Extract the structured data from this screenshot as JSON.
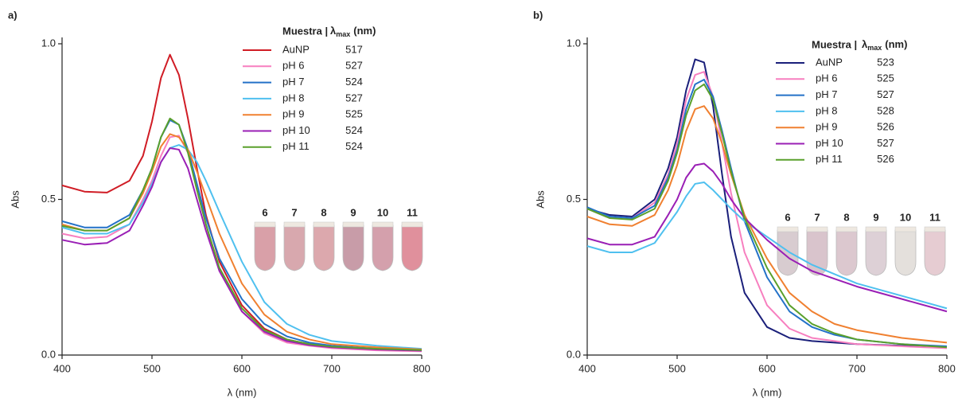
{
  "chart_data": [
    {
      "type": "line",
      "panel_label": "a)",
      "x_label": "λ (nm)",
      "y_label": "Abs",
      "xlim": [
        400,
        800
      ],
      "xticks": [
        400,
        500,
        600,
        700,
        800
      ],
      "ylim": [
        0,
        1.0
      ],
      "yticks": [
        {
          "value": 0,
          "label": "0.0"
        },
        {
          "value": 0.5,
          "label": "0.5"
        },
        {
          "value": 1.0,
          "label": "1.0"
        }
      ],
      "legend_title": "Muestra |",
      "lambda_symbol": "λ",
      "lambda_sub": "max",
      "lambda_unit": "(nm)",
      "x": [
        400,
        425,
        450,
        475,
        490,
        500,
        510,
        520,
        530,
        540,
        550,
        560,
        575,
        600,
        625,
        650,
        675,
        700,
        750,
        800
      ],
      "series": [
        {
          "name": "AuNP",
          "lambda_max": 517,
          "color": "#d01c25",
          "values": [
            0.545,
            0.525,
            0.522,
            0.56,
            0.64,
            0.75,
            0.89,
            0.965,
            0.9,
            0.76,
            0.6,
            0.45,
            0.3,
            0.16,
            0.085,
            0.05,
            0.035,
            0.028,
            0.02,
            0.015
          ]
        },
        {
          "name": "pH 6",
          "lambda_max": 527,
          "color": "#f77fbf",
          "values": [
            0.39,
            0.375,
            0.38,
            0.42,
            0.5,
            0.56,
            0.64,
            0.7,
            0.705,
            0.65,
            0.54,
            0.42,
            0.27,
            0.14,
            0.07,
            0.04,
            0.03,
            0.022,
            0.015,
            0.012
          ]
        },
        {
          "name": "pH 7",
          "lambda_max": 524,
          "color": "#2472c8",
          "values": [
            0.43,
            0.41,
            0.41,
            0.45,
            0.53,
            0.6,
            0.7,
            0.755,
            0.74,
            0.66,
            0.55,
            0.44,
            0.31,
            0.18,
            0.1,
            0.06,
            0.04,
            0.03,
            0.02,
            0.015
          ]
        },
        {
          "name": "pH 8",
          "lambda_max": 527,
          "color": "#4fc0ef",
          "values": [
            0.41,
            0.39,
            0.39,
            0.42,
            0.49,
            0.55,
            0.62,
            0.665,
            0.675,
            0.66,
            0.62,
            0.56,
            0.46,
            0.3,
            0.17,
            0.1,
            0.065,
            0.045,
            0.03,
            0.02
          ]
        },
        {
          "name": "pH 9",
          "lambda_max": 525,
          "color": "#f08030",
          "values": [
            0.42,
            0.4,
            0.4,
            0.44,
            0.52,
            0.59,
            0.67,
            0.71,
            0.7,
            0.66,
            0.59,
            0.51,
            0.39,
            0.23,
            0.13,
            0.075,
            0.05,
            0.035,
            0.025,
            0.018
          ]
        },
        {
          "name": "pH 10",
          "lambda_max": 524,
          "color": "#9a1fb5",
          "values": [
            0.37,
            0.355,
            0.36,
            0.4,
            0.48,
            0.54,
            0.62,
            0.665,
            0.66,
            0.6,
            0.5,
            0.4,
            0.27,
            0.14,
            0.075,
            0.045,
            0.032,
            0.025,
            0.018,
            0.014
          ]
        },
        {
          "name": "pH 11",
          "lambda_max": 524,
          "color": "#5aa02c",
          "values": [
            0.415,
            0.4,
            0.4,
            0.44,
            0.53,
            0.6,
            0.7,
            0.76,
            0.74,
            0.65,
            0.53,
            0.42,
            0.28,
            0.15,
            0.08,
            0.05,
            0.035,
            0.027,
            0.02,
            0.016
          ]
        }
      ],
      "vial_labels": [
        "6",
        "7",
        "8",
        "9",
        "10",
        "11"
      ],
      "vial_colors": [
        "#d9a0a8",
        "#d8a8ae",
        "#dca8ad",
        "#c89ca8",
        "#d4a0ac",
        "#e0909c"
      ]
    },
    {
      "type": "line",
      "panel_label": "b)",
      "x_label": "λ (nm)",
      "y_label": "Abs",
      "xlim": [
        400,
        800
      ],
      "xticks": [
        400,
        500,
        600,
        700,
        800
      ],
      "ylim": [
        0,
        1.0
      ],
      "yticks": [
        {
          "value": 0,
          "label": "0.0"
        },
        {
          "value": 0.5,
          "label": "0.5"
        },
        {
          "value": 1.0,
          "label": "1.0"
        }
      ],
      "legend_title": "Muestra |",
      "lambda_symbol": "λ",
      "lambda_sub": "max",
      "lambda_unit": "(nm)",
      "x": [
        400,
        425,
        450,
        475,
        490,
        500,
        510,
        520,
        530,
        540,
        550,
        560,
        575,
        600,
        625,
        650,
        675,
        700,
        750,
        800
      ],
      "series": [
        {
          "name": "AuNP",
          "lambda_max": 523,
          "color": "#1a1f7a",
          "values": [
            0.47,
            0.45,
            0.445,
            0.5,
            0.6,
            0.7,
            0.85,
            0.95,
            0.94,
            0.8,
            0.58,
            0.38,
            0.2,
            0.09,
            0.055,
            0.045,
            0.04,
            0.035,
            0.03,
            0.025
          ]
        },
        {
          "name": "pH 6",
          "lambda_max": 525,
          "color": "#f77fbf",
          "values": [
            0.47,
            0.44,
            0.44,
            0.49,
            0.58,
            0.68,
            0.82,
            0.9,
            0.91,
            0.83,
            0.68,
            0.52,
            0.33,
            0.16,
            0.085,
            0.055,
            0.045,
            0.035,
            0.028,
            0.022
          ]
        },
        {
          "name": "pH 7",
          "lambda_max": 527,
          "color": "#2472c8",
          "values": [
            0.475,
            0.445,
            0.44,
            0.48,
            0.57,
            0.66,
            0.79,
            0.87,
            0.885,
            0.83,
            0.72,
            0.6,
            0.43,
            0.25,
            0.14,
            0.09,
            0.065,
            0.05,
            0.035,
            0.028
          ]
        },
        {
          "name": "pH 8",
          "lambda_max": 528,
          "color": "#4fc0ef",
          "values": [
            0.35,
            0.33,
            0.33,
            0.36,
            0.42,
            0.46,
            0.51,
            0.55,
            0.555,
            0.53,
            0.5,
            0.47,
            0.43,
            0.38,
            0.33,
            0.29,
            0.26,
            0.23,
            0.19,
            0.15
          ]
        },
        {
          "name": "pH 9",
          "lambda_max": 526,
          "color": "#f08030",
          "values": [
            0.445,
            0.42,
            0.415,
            0.45,
            0.53,
            0.61,
            0.72,
            0.79,
            0.8,
            0.76,
            0.68,
            0.58,
            0.45,
            0.31,
            0.2,
            0.14,
            0.1,
            0.08,
            0.055,
            0.04
          ]
        },
        {
          "name": "pH 10",
          "lambda_max": 527,
          "color": "#9a1fb5",
          "values": [
            0.375,
            0.355,
            0.355,
            0.38,
            0.45,
            0.5,
            0.57,
            0.61,
            0.615,
            0.59,
            0.55,
            0.5,
            0.44,
            0.37,
            0.31,
            0.27,
            0.245,
            0.22,
            0.18,
            0.14
          ]
        },
        {
          "name": "pH 11",
          "lambda_max": 526,
          "color": "#5aa02c",
          "values": [
            0.47,
            0.44,
            0.435,
            0.47,
            0.56,
            0.65,
            0.77,
            0.85,
            0.87,
            0.82,
            0.71,
            0.59,
            0.44,
            0.28,
            0.16,
            0.1,
            0.07,
            0.05,
            0.035,
            0.025
          ]
        }
      ],
      "vial_labels": [
        "6",
        "7",
        "8",
        "9",
        "10",
        "11"
      ],
      "vial_colors": [
        "#d8ccd0",
        "#d9c4cc",
        "#dcc8cf",
        "#ddd0d6",
        "#e4e0dc",
        "#e6ccd2"
      ]
    }
  ]
}
